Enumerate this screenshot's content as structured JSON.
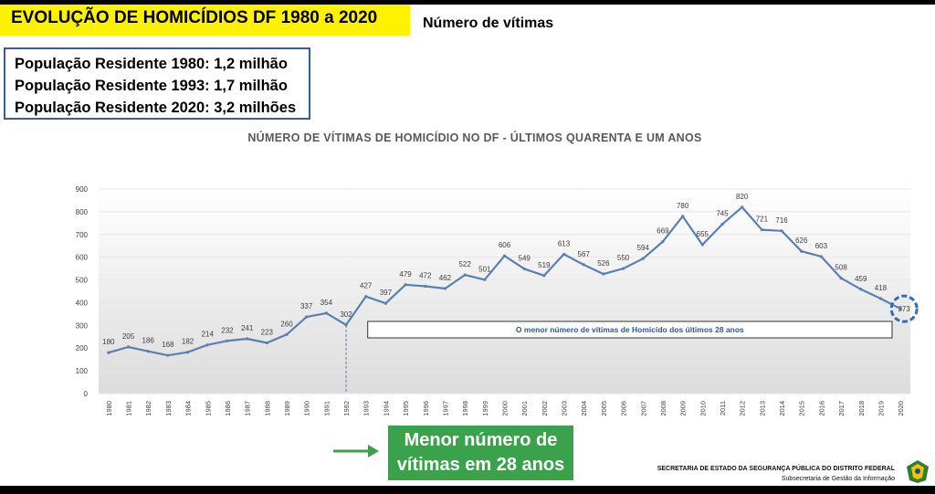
{
  "header": {
    "title": "EVOLUÇÃO DE HOMICÍDIOS DF 1980 a 2020",
    "subtitle": "Número de vítimas"
  },
  "population": [
    "População Residente 1980: 1,2 milhão",
    "População Residente 1993: 1,7 milhão",
    "População Residente 2020: 3,2 milhões"
  ],
  "callout": {
    "line1": "Menor número de",
    "line2": "vítimas em 28 anos"
  },
  "footer": {
    "line1": "SECRETARIA DE ESTADO DA SEGURANÇA PÚBLICA DO DISTRITO FEDERAL",
    "line2": "Subsecretaria de Gestão da Informação"
  },
  "colors": {
    "title_bg": "#fff200",
    "line": "#5b7fb3",
    "callout_bg": "#3aa24a",
    "annotation_text": "#2f5597"
  },
  "chart_data": {
    "type": "line",
    "title": "NÚMERO DE VÍTIMAS DE HOMICÍDIO NO DF - ÚLTIMOS QUARENTA E UM ANOS",
    "xlabel": "",
    "ylabel": "",
    "ylim": [
      0,
      900
    ],
    "yticks": [
      0,
      100,
      200,
      300,
      400,
      500,
      600,
      700,
      800,
      900
    ],
    "categories": [
      "1980",
      "1981",
      "1982",
      "1983",
      "1984",
      "1985",
      "1986",
      "1987",
      "1988",
      "1989",
      "1990",
      "1991",
      "1992",
      "1993",
      "1994",
      "1995",
      "1996",
      "1997",
      "1998",
      "1999",
      "2000",
      "2001",
      "2002",
      "2003",
      "2004",
      "2005",
      "2006",
      "2007",
      "2008",
      "2009",
      "2010",
      "2011",
      "2012",
      "2013",
      "2014",
      "2015",
      "2016",
      "2017",
      "2018",
      "2019",
      "2020"
    ],
    "values": [
      180,
      205,
      186,
      168,
      182,
      214,
      232,
      241,
      223,
      260,
      337,
      354,
      302,
      427,
      397,
      479,
      472,
      462,
      522,
      501,
      606,
      549,
      519,
      613,
      567,
      526,
      550,
      594,
      669,
      780,
      655,
      745,
      820,
      721,
      716,
      626,
      603,
      508,
      459,
      418,
      373
    ],
    "grid": true,
    "annotation": "O menor número de vítimas de Homicído dos últimos 28 anos",
    "highlight_year": "2020",
    "reference_year": "1992"
  }
}
